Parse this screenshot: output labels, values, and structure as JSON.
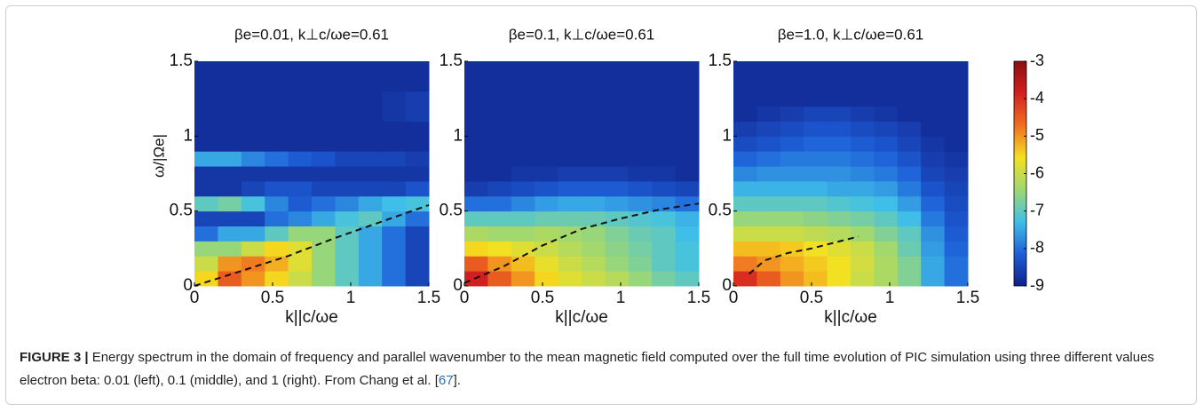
{
  "chart_data": [
    {
      "type": "heatmap",
      "title": "βe=0.01, k⊥c/ωe=0.61",
      "xlabel": "k||c/ωe",
      "ylabel": "ω/|Ωe|",
      "xlim": [
        0,
        1.5
      ],
      "ylim": [
        0,
        1.5
      ],
      "xticks": [
        0,
        0.5,
        1,
        1.5
      ],
      "yticks": [
        0,
        0.5,
        1,
        1.5
      ],
      "xbins": [
        0,
        0.15,
        0.3,
        0.45,
        0.6,
        0.75,
        0.9,
        1.05,
        1.2,
        1.35,
        1.5
      ],
      "ybins": [
        0,
        0.1,
        0.2,
        0.3,
        0.4,
        0.5,
        0.6,
        0.7,
        0.8,
        0.9,
        1.0,
        1.1,
        1.2,
        1.3,
        1.4,
        1.5
      ],
      "z": [
        [
          -5.5,
          -4.5,
          -5,
          -5.5,
          -6,
          -6.5,
          -7,
          -7.5,
          -8,
          -8.5
        ],
        [
          -6,
          -5,
          -4.8,
          -5.2,
          -5.8,
          -6.5,
          -7,
          -7.5,
          -8,
          -8.5
        ],
        [
          -6.5,
          -6.5,
          -6,
          -5.5,
          -5.8,
          -6.5,
          -7,
          -7.5,
          -8,
          -8.5
        ],
        [
          -8,
          -7.5,
          -7.5,
          -7,
          -6.5,
          -6.5,
          -7,
          -7.5,
          -8,
          -8.5
        ],
        [
          -8.5,
          -8.5,
          -8.5,
          -8,
          -7.8,
          -7.5,
          -7.2,
          -7,
          -7.5,
          -8
        ],
        [
          -7,
          -6.8,
          -7.2,
          -7.8,
          -8.2,
          -8,
          -7.8,
          -7.5,
          -7.3,
          -7.2
        ],
        [
          -8.7,
          -8.7,
          -8.5,
          -8.3,
          -8.3,
          -8.5,
          -8.5,
          -8.5,
          -8.5,
          -8.3
        ],
        [
          -8.7,
          -8.7,
          -8.7,
          -8.7,
          -8.7,
          -8.7,
          -8.7,
          -8.7,
          -8.7,
          -8.7
        ],
        [
          -7.5,
          -7.5,
          -7.8,
          -8,
          -8.2,
          -8.3,
          -8.5,
          -8.5,
          -8.5,
          -8.6
        ],
        [
          -8.8,
          -8.8,
          -8.8,
          -8.8,
          -8.8,
          -8.8,
          -8.8,
          -8.8,
          -8.8,
          -8.8
        ],
        [
          -8.8,
          -8.8,
          -8.8,
          -8.8,
          -8.8,
          -8.8,
          -8.8,
          -8.8,
          -8.8,
          -8.8
        ],
        [
          -8.8,
          -8.8,
          -8.8,
          -8.8,
          -8.8,
          -8.8,
          -8.8,
          -8.8,
          -8.7,
          -8.6
        ],
        [
          -8.8,
          -8.8,
          -8.8,
          -8.8,
          -8.8,
          -8.8,
          -8.8,
          -8.8,
          -8.7,
          -8.6
        ],
        [
          -8.8,
          -8.8,
          -8.8,
          -8.8,
          -8.8,
          -8.8,
          -8.8,
          -8.8,
          -8.8,
          -8.8
        ],
        [
          -8.8,
          -8.8,
          -8.8,
          -8.8,
          -8.8,
          -8.8,
          -8.8,
          -8.8,
          -8.8,
          -8.8
        ]
      ],
      "curve": {
        "x": [
          0,
          0.3,
          0.6,
          0.9,
          1.2,
          1.5
        ],
        "y": [
          0,
          0.1,
          0.2,
          0.32,
          0.43,
          0.54
        ]
      }
    },
    {
      "type": "heatmap",
      "title": "βe=0.1, k⊥c/ωe=0.61",
      "xlabel": "k||c/ωe",
      "xlim": [
        0,
        1.5
      ],
      "ylim": [
        0,
        1.5
      ],
      "xticks": [
        0,
        0.5,
        1,
        1.5
      ],
      "yticks": [
        0,
        0.5,
        1,
        1.5
      ],
      "xbins": [
        0,
        0.15,
        0.3,
        0.45,
        0.6,
        0.75,
        0.9,
        1.05,
        1.2,
        1.35,
        1.5
      ],
      "ybins": [
        0,
        0.1,
        0.2,
        0.3,
        0.4,
        0.5,
        0.6,
        0.7,
        0.8,
        0.9,
        1.0,
        1.1,
        1.2,
        1.3,
        1.4,
        1.5
      ],
      "z": [
        [
          -3.8,
          -4.5,
          -5,
          -5.5,
          -5.8,
          -6,
          -6.2,
          -6.5,
          -6.8,
          -7
        ],
        [
          -4.5,
          -5,
          -5.3,
          -5.7,
          -6,
          -6.2,
          -6.5,
          -6.7,
          -7,
          -7.2
        ],
        [
          -5.5,
          -5.6,
          -5.8,
          -6,
          -6.2,
          -6.4,
          -6.6,
          -6.8,
          -7,
          -7.2
        ],
        [
          -6.3,
          -6.4,
          -6.4,
          -6.3,
          -6.4,
          -6.5,
          -6.7,
          -6.9,
          -7,
          -7.3
        ],
        [
          -7,
          -7,
          -7,
          -6.9,
          -6.9,
          -6.9,
          -7,
          -7.1,
          -7.2,
          -7.4
        ],
        [
          -8,
          -8,
          -7.8,
          -7.6,
          -7.5,
          -7.5,
          -7.6,
          -7.7,
          -7.8,
          -8
        ],
        [
          -8.6,
          -8.5,
          -8.4,
          -8.3,
          -8.2,
          -8.2,
          -8.2,
          -8.3,
          -8.4,
          -8.5
        ],
        [
          -8.8,
          -8.8,
          -8.7,
          -8.7,
          -8.6,
          -8.6,
          -8.6,
          -8.7,
          -8.7,
          -8.8
        ],
        [
          -8.8,
          -8.8,
          -8.8,
          -8.8,
          -8.8,
          -8.8,
          -8.8,
          -8.8,
          -8.8,
          -8.8
        ],
        [
          -8.8,
          -8.8,
          -8.8,
          -8.8,
          -8.8,
          -8.8,
          -8.8,
          -8.8,
          -8.8,
          -8.8
        ],
        [
          -8.8,
          -8.8,
          -8.8,
          -8.8,
          -8.8,
          -8.8,
          -8.8,
          -8.8,
          -8.8,
          -8.8
        ],
        [
          -8.8,
          -8.8,
          -8.8,
          -8.8,
          -8.8,
          -8.8,
          -8.8,
          -8.8,
          -8.8,
          -8.8
        ],
        [
          -8.8,
          -8.8,
          -8.8,
          -8.8,
          -8.8,
          -8.8,
          -8.8,
          -8.8,
          -8.8,
          -8.8
        ],
        [
          -8.8,
          -8.8,
          -8.8,
          -8.8,
          -8.8,
          -8.8,
          -8.8,
          -8.8,
          -8.8,
          -8.8
        ],
        [
          -8.8,
          -8.8,
          -8.8,
          -8.8,
          -8.8,
          -8.8,
          -8.8,
          -8.8,
          -8.8,
          -8.8
        ]
      ],
      "curve": {
        "x": [
          0,
          0.25,
          0.5,
          0.75,
          1,
          1.25,
          1.5
        ],
        "y": [
          0.02,
          0.13,
          0.27,
          0.38,
          0.45,
          0.51,
          0.55
        ]
      }
    },
    {
      "type": "heatmap",
      "title": "βe=1.0, k⊥c/ωe=0.61",
      "xlabel": "k||c/ωe",
      "xlim": [
        0,
        1.5
      ],
      "ylim": [
        0,
        1.5
      ],
      "xticks": [
        0,
        0.5,
        1,
        1.5
      ],
      "yticks": [
        0,
        0.5,
        1,
        1.5
      ],
      "xbins": [
        0,
        0.15,
        0.3,
        0.45,
        0.6,
        0.75,
        0.9,
        1.05,
        1.2,
        1.35,
        1.5
      ],
      "ybins": [
        0,
        0.1,
        0.2,
        0.3,
        0.4,
        0.5,
        0.6,
        0.7,
        0.8,
        0.9,
        1.0,
        1.1,
        1.2,
        1.3,
        1.4,
        1.5
      ],
      "z": [
        [
          -4,
          -4.5,
          -5,
          -5.3,
          -5.6,
          -6,
          -6.3,
          -6.7,
          -7.5,
          -8
        ],
        [
          -4.8,
          -5,
          -5.2,
          -5.4,
          -5.6,
          -5.9,
          -6.3,
          -6.7,
          -7.5,
          -8
        ],
        [
          -5.3,
          -5.3,
          -5.4,
          -5.6,
          -5.8,
          -6,
          -6.4,
          -6.9,
          -7.6,
          -8.1
        ],
        [
          -6,
          -6,
          -6,
          -6.1,
          -6.2,
          -6.4,
          -6.7,
          -7,
          -7.7,
          -8.2
        ],
        [
          -6.5,
          -6.5,
          -6.5,
          -6.6,
          -6.7,
          -6.8,
          -7,
          -7.3,
          -7.9,
          -8.3
        ],
        [
          -7,
          -7,
          -7,
          -7,
          -7.1,
          -7.2,
          -7.3,
          -7.6,
          -8.1,
          -8.4
        ],
        [
          -7.4,
          -7.4,
          -7.4,
          -7.4,
          -7.5,
          -7.5,
          -7.6,
          -7.9,
          -8.3,
          -8.5
        ],
        [
          -7.8,
          -7.7,
          -7.7,
          -7.7,
          -7.7,
          -7.8,
          -7.9,
          -8.1,
          -8.5,
          -8.6
        ],
        [
          -8.1,
          -8,
          -7.9,
          -7.9,
          -7.9,
          -8,
          -8.1,
          -8.3,
          -8.6,
          -8.7
        ],
        [
          -8.4,
          -8.3,
          -8.2,
          -8.1,
          -8.1,
          -8.2,
          -8.3,
          -8.5,
          -8.7,
          -8.8
        ],
        [
          -8.6,
          -8.5,
          -8.4,
          -8.3,
          -8.3,
          -8.4,
          -8.5,
          -8.6,
          -8.8,
          -8.8
        ],
        [
          -8.8,
          -8.7,
          -8.6,
          -8.5,
          -8.5,
          -8.6,
          -8.7,
          -8.8,
          -8.8,
          -8.8
        ],
        [
          -8.8,
          -8.8,
          -8.8,
          -8.8,
          -8.8,
          -8.8,
          -8.8,
          -8.8,
          -8.8,
          -8.8
        ],
        [
          -8.8,
          -8.8,
          -8.8,
          -8.8,
          -8.8,
          -8.8,
          -8.8,
          -8.8,
          -8.8,
          -8.8
        ],
        [
          -8.8,
          -8.8,
          -8.8,
          -8.8,
          -8.8,
          -8.8,
          -8.8,
          -8.8,
          -8.8,
          -8.8
        ]
      ],
      "curve": {
        "x": [
          0.1,
          0.2,
          0.35,
          0.5,
          0.65,
          0.8
        ],
        "y": [
          0.08,
          0.17,
          0.22,
          0.25,
          0.29,
          0.33
        ]
      }
    }
  ],
  "colorbar": {
    "clim": [
      -9,
      -3
    ],
    "ticks": [
      -3,
      -4,
      -5,
      -6,
      -7,
      -8,
      -9
    ],
    "colormap": [
      "#10208a",
      "#1e5fd8",
      "#3fc0e8",
      "#9fd870",
      "#f5e020",
      "#f07020",
      "#d42020",
      "#8a0f0f"
    ]
  },
  "caption": {
    "label": "FIGURE 3 |",
    "text": " Energy spectrum in the domain of frequency and parallel wavenumber to the mean magnetic field computed over the full time evolution of PIC simulation using three different values electron beta: 0.01 (left), 0.1 (middle), and 1 (right). From Chang et al. [",
    "ref": "67",
    "end": "]."
  }
}
